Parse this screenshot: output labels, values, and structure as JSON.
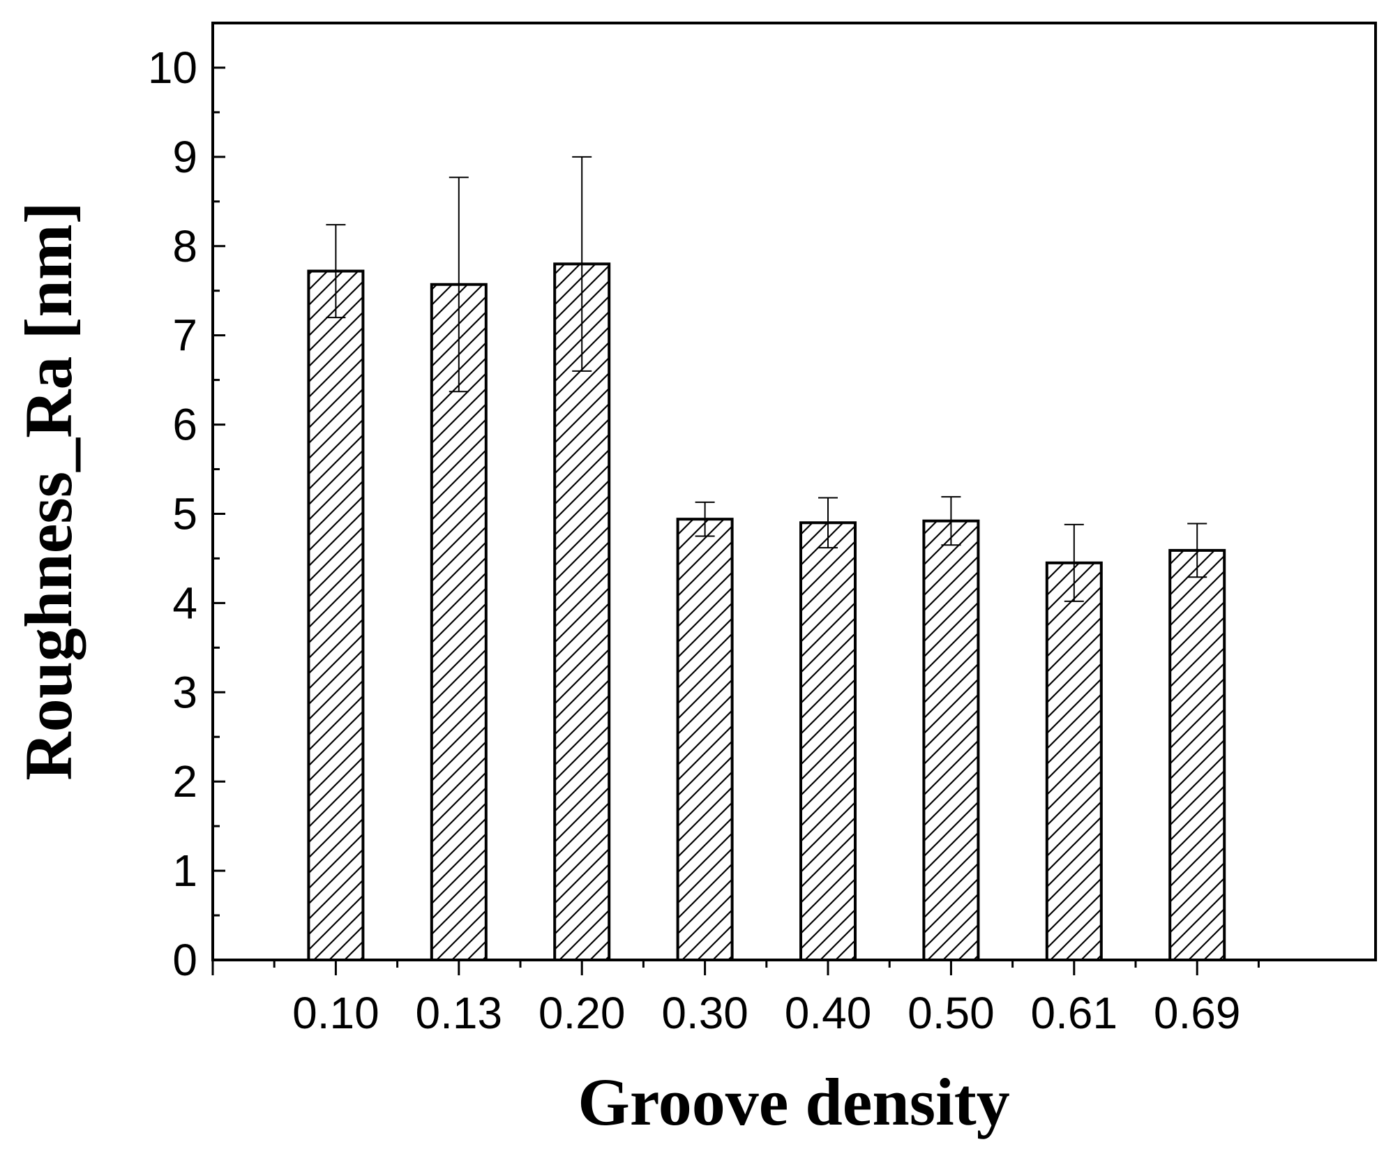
{
  "chart_data": {
    "type": "bar",
    "title": "",
    "xlabel": "Groove density",
    "ylabel": "Roughness_Ra [nm]",
    "categories": [
      "0.10",
      "0.13",
      "0.20",
      "0.30",
      "0.40",
      "0.50",
      "0.61",
      "0.69"
    ],
    "values": [
      7.72,
      7.57,
      7.8,
      4.94,
      4.9,
      4.92,
      4.45,
      4.59
    ],
    "errors": [
      0.52,
      1.2,
      1.2,
      0.19,
      0.28,
      0.27,
      0.43,
      0.3
    ],
    "ylim": [
      0,
      10.5
    ],
    "yticks": [
      "0",
      "1",
      "2",
      "3",
      "4",
      "5",
      "6",
      "7",
      "8",
      "9",
      "10"
    ],
    "bar_fill": "hatched diagonal",
    "bar_color": "#000000",
    "background": "#ffffff",
    "grid": false,
    "legend": "none",
    "error_bars": true
  }
}
